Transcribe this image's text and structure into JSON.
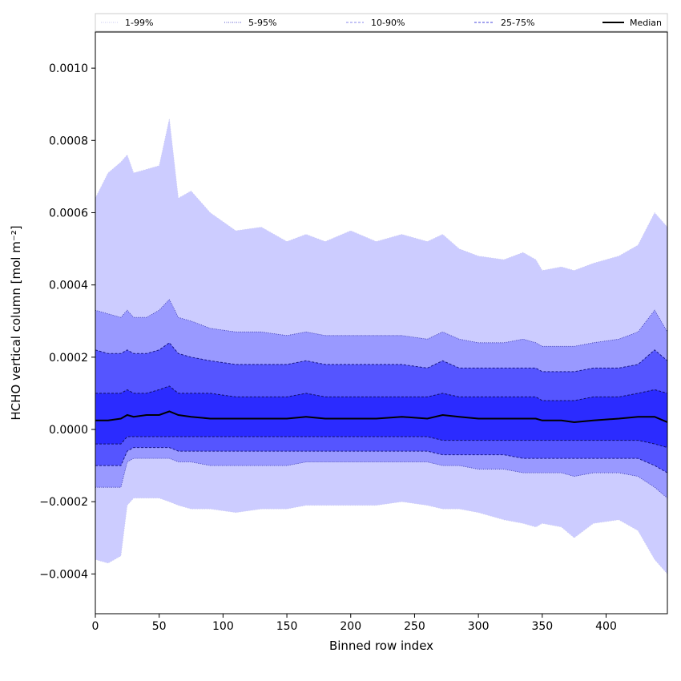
{
  "chart_data": {
    "type": "area",
    "xlabel": "Binned row index",
    "ylabel": "HCHO vertical column [mol m⁻²]",
    "xlim": [
      0,
      448
    ],
    "ylim": [
      -0.00051,
      0.0011
    ],
    "x_ticks": [
      0,
      50,
      100,
      150,
      200,
      250,
      300,
      350,
      400
    ],
    "x_tick_labels": [
      "0",
      "50",
      "100",
      "150",
      "200",
      "250",
      "300",
      "350",
      "400"
    ],
    "y_ticks": [
      -0.0004,
      -0.0002,
      0.0,
      0.0002,
      0.0004,
      0.0006,
      0.0008,
      0.001
    ],
    "y_tick_labels": [
      "−0.0004",
      "−0.0002",
      "0.0000",
      "0.0002",
      "0.0004",
      "0.0006",
      "0.0008",
      "0.0010"
    ],
    "grid": false,
    "legend_position": "top",
    "legend": [
      {
        "label": "1-99%",
        "style": "dotted",
        "color": "#c8c8f0"
      },
      {
        "label": "5-95%",
        "style": "dotted",
        "color": "#5555cc"
      },
      {
        "label": "10-90%",
        "style": "dashed",
        "color": "#8888ee"
      },
      {
        "label": "25-75%",
        "style": "dashed",
        "color": "#4444dd"
      },
      {
        "label": "Median",
        "style": "solid",
        "color": "#000000"
      }
    ],
    "band_colors": [
      "#ccccff",
      "#9999ff",
      "#5555ff",
      "#2b2bff"
    ],
    "x_anchor": [
      0,
      10,
      20,
      25,
      30,
      40,
      50,
      58,
      65,
      75,
      90,
      110,
      130,
      150,
      165,
      180,
      200,
      220,
      240,
      260,
      272,
      285,
      300,
      320,
      335,
      345,
      350,
      365,
      375,
      390,
      410,
      425,
      438,
      448
    ],
    "series": [
      {
        "name": "1-99%",
        "band": "upper",
        "values": [
          0.00064,
          0.00071,
          0.00074,
          0.00076,
          0.00071,
          0.00072,
          0.00073,
          0.00086,
          0.00064,
          0.00066,
          0.0006,
          0.00055,
          0.00056,
          0.00052,
          0.00054,
          0.00052,
          0.00055,
          0.00052,
          0.00054,
          0.00052,
          0.00054,
          0.0005,
          0.00048,
          0.00047,
          0.00049,
          0.00047,
          0.00044,
          0.00045,
          0.00044,
          0.00046,
          0.00048,
          0.00051,
          0.0006,
          0.00056
        ]
      },
      {
        "name": "1-99%",
        "band": "lower",
        "values": [
          -0.00036,
          -0.00037,
          -0.00035,
          -0.00021,
          -0.00019,
          -0.00019,
          -0.00019,
          -0.0002,
          -0.00021,
          -0.00022,
          -0.00022,
          -0.00023,
          -0.00022,
          -0.00022,
          -0.00021,
          -0.00021,
          -0.00021,
          -0.00021,
          -0.0002,
          -0.00021,
          -0.00022,
          -0.00022,
          -0.00023,
          -0.00025,
          -0.00026,
          -0.00027,
          -0.00026,
          -0.00027,
          -0.0003,
          -0.00026,
          -0.00025,
          -0.00028,
          -0.00036,
          -0.0004
        ]
      },
      {
        "name": "5-95%",
        "band": "upper",
        "values": [
          0.00033,
          0.00032,
          0.00031,
          0.00033,
          0.00031,
          0.00031,
          0.00033,
          0.00036,
          0.00031,
          0.0003,
          0.00028,
          0.00027,
          0.00027,
          0.00026,
          0.00027,
          0.00026,
          0.00026,
          0.00026,
          0.00026,
          0.00025,
          0.00027,
          0.00025,
          0.00024,
          0.00024,
          0.00025,
          0.00024,
          0.00023,
          0.00023,
          0.00023,
          0.00024,
          0.00025,
          0.00027,
          0.00033,
          0.00027
        ]
      },
      {
        "name": "5-95%",
        "band": "lower",
        "values": [
          -0.00016,
          -0.00016,
          -0.00016,
          -9e-05,
          -8e-05,
          -8e-05,
          -8e-05,
          -8e-05,
          -9e-05,
          -9e-05,
          -0.0001,
          -0.0001,
          -0.0001,
          -0.0001,
          -9e-05,
          -9e-05,
          -9e-05,
          -9e-05,
          -9e-05,
          -9e-05,
          -0.0001,
          -0.0001,
          -0.00011,
          -0.00011,
          -0.00012,
          -0.00012,
          -0.00012,
          -0.00012,
          -0.00013,
          -0.00012,
          -0.00012,
          -0.00013,
          -0.00016,
          -0.00019
        ]
      },
      {
        "name": "10-90%",
        "band": "upper",
        "values": [
          0.00022,
          0.00021,
          0.00021,
          0.00022,
          0.00021,
          0.00021,
          0.00022,
          0.00024,
          0.00021,
          0.0002,
          0.00019,
          0.00018,
          0.00018,
          0.00018,
          0.00019,
          0.00018,
          0.00018,
          0.00018,
          0.00018,
          0.00017,
          0.00019,
          0.00017,
          0.00017,
          0.00017,
          0.00017,
          0.00017,
          0.00016,
          0.00016,
          0.00016,
          0.00017,
          0.00017,
          0.00018,
          0.00022,
          0.00019
        ]
      },
      {
        "name": "10-90%",
        "band": "lower",
        "values": [
          -0.0001,
          -0.0001,
          -0.0001,
          -6e-05,
          -5e-05,
          -5e-05,
          -5e-05,
          -5e-05,
          -6e-05,
          -6e-05,
          -6e-05,
          -6e-05,
          -6e-05,
          -6e-05,
          -6e-05,
          -6e-05,
          -6e-05,
          -6e-05,
          -6e-05,
          -6e-05,
          -7e-05,
          -7e-05,
          -7e-05,
          -7e-05,
          -8e-05,
          -8e-05,
          -8e-05,
          -8e-05,
          -8e-05,
          -8e-05,
          -8e-05,
          -8e-05,
          -0.0001,
          -0.00012
        ]
      },
      {
        "name": "25-75%",
        "band": "upper",
        "values": [
          0.0001,
          0.0001,
          0.0001,
          0.00011,
          0.0001,
          0.0001,
          0.00011,
          0.00012,
          0.0001,
          0.0001,
          0.0001,
          9e-05,
          9e-05,
          9e-05,
          0.0001,
          9e-05,
          9e-05,
          9e-05,
          9e-05,
          9e-05,
          0.0001,
          9e-05,
          9e-05,
          9e-05,
          9e-05,
          9e-05,
          8e-05,
          8e-05,
          8e-05,
          9e-05,
          9e-05,
          0.0001,
          0.00011,
          0.0001
        ]
      },
      {
        "name": "25-75%",
        "band": "lower",
        "values": [
          -4e-05,
          -4e-05,
          -4e-05,
          -2e-05,
          -2e-05,
          -2e-05,
          -2e-05,
          -2e-05,
          -2e-05,
          -2e-05,
          -2e-05,
          -2e-05,
          -2e-05,
          -2e-05,
          -2e-05,
          -2e-05,
          -2e-05,
          -2e-05,
          -2e-05,
          -2e-05,
          -3e-05,
          -3e-05,
          -3e-05,
          -3e-05,
          -3e-05,
          -3e-05,
          -3e-05,
          -3e-05,
          -3e-05,
          -3e-05,
          -3e-05,
          -3e-05,
          -4e-05,
          -5e-05
        ]
      },
      {
        "name": "Median",
        "band": "median",
        "values": [
          2.5e-05,
          2.5e-05,
          3e-05,
          4e-05,
          3.5e-05,
          4e-05,
          4e-05,
          5e-05,
          4e-05,
          3.5e-05,
          3e-05,
          3e-05,
          3e-05,
          3e-05,
          3.5e-05,
          3e-05,
          3e-05,
          3e-05,
          3.5e-05,
          3e-05,
          4e-05,
          3.5e-05,
          3e-05,
          3e-05,
          3e-05,
          3e-05,
          2.5e-05,
          2.5e-05,
          2e-05,
          2.5e-05,
          3e-05,
          3.5e-05,
          3.5e-05,
          2e-05
        ]
      }
    ]
  }
}
